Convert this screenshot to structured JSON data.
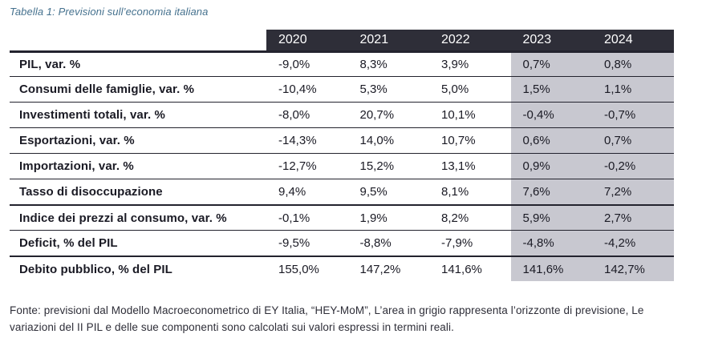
{
  "caption": "Tabella 1: Previsioni sull’economia italiana",
  "table": {
    "years": [
      "2020",
      "2021",
      "2022",
      "2023",
      "2024"
    ],
    "forecast_years": [
      "2023",
      "2024"
    ],
    "rows": [
      {
        "label": "PIL, var. %",
        "values": [
          "-9,0%",
          "8,3%",
          "3,9%",
          "0,7%",
          "0,8%"
        ]
      },
      {
        "label": "Consumi delle famiglie, var. %",
        "values": [
          "-10,4%",
          "5,3%",
          "5,0%",
          "1,5%",
          "1,1%"
        ]
      },
      {
        "label": "Investimenti totali, var. %",
        "values": [
          "-8,0%",
          "20,7%",
          "10,1%",
          "-0,4%",
          "-0,7%"
        ]
      },
      {
        "label": "Esportazioni, var. %",
        "values": [
          "-14,3%",
          "14,0%",
          "10,7%",
          "0,6%",
          "0,7%"
        ]
      },
      {
        "label": "Importazioni, var. %",
        "values": [
          "-12,7%",
          "15,2%",
          "13,1%",
          "0,9%",
          "-0,2%"
        ]
      },
      {
        "label": "Tasso di disoccupazione",
        "values": [
          "9,4%",
          "9,5%",
          "8,1%",
          "7,6%",
          "7,2%"
        ]
      },
      {
        "label": "Indice dei prezzi al consumo, var. %",
        "values": [
          "-0,1%",
          "1,9%",
          "8,2%",
          "5,9%",
          "2,7%"
        ],
        "thick_top": true
      },
      {
        "label": "Deficit, % del PIL",
        "values": [
          "-9,5%",
          "-8,8%",
          "-7,9%",
          "-4,8%",
          "-4,2%"
        ]
      },
      {
        "label": "Debito pubblico, % del PIL",
        "values": [
          "155,0%",
          "147,2%",
          "141,6%",
          "141,6%",
          "142,7%"
        ],
        "thick_top": true
      }
    ]
  },
  "colors": {
    "header_bg": "#2e2e38",
    "forecast_bg": "#c8c8d0",
    "caption_color": "#45718e"
  },
  "footer": {
    "line1": "Fonte: previsioni dal Modello Macroeconometrico di EY Italia, “HEY-MoM”, L’area in grigio rappresenta l’orizzonte di previsione, Le",
    "line2": "variazioni del II PIL e delle sue componenti sono calcolati sui valori espressi in termini reali."
  }
}
